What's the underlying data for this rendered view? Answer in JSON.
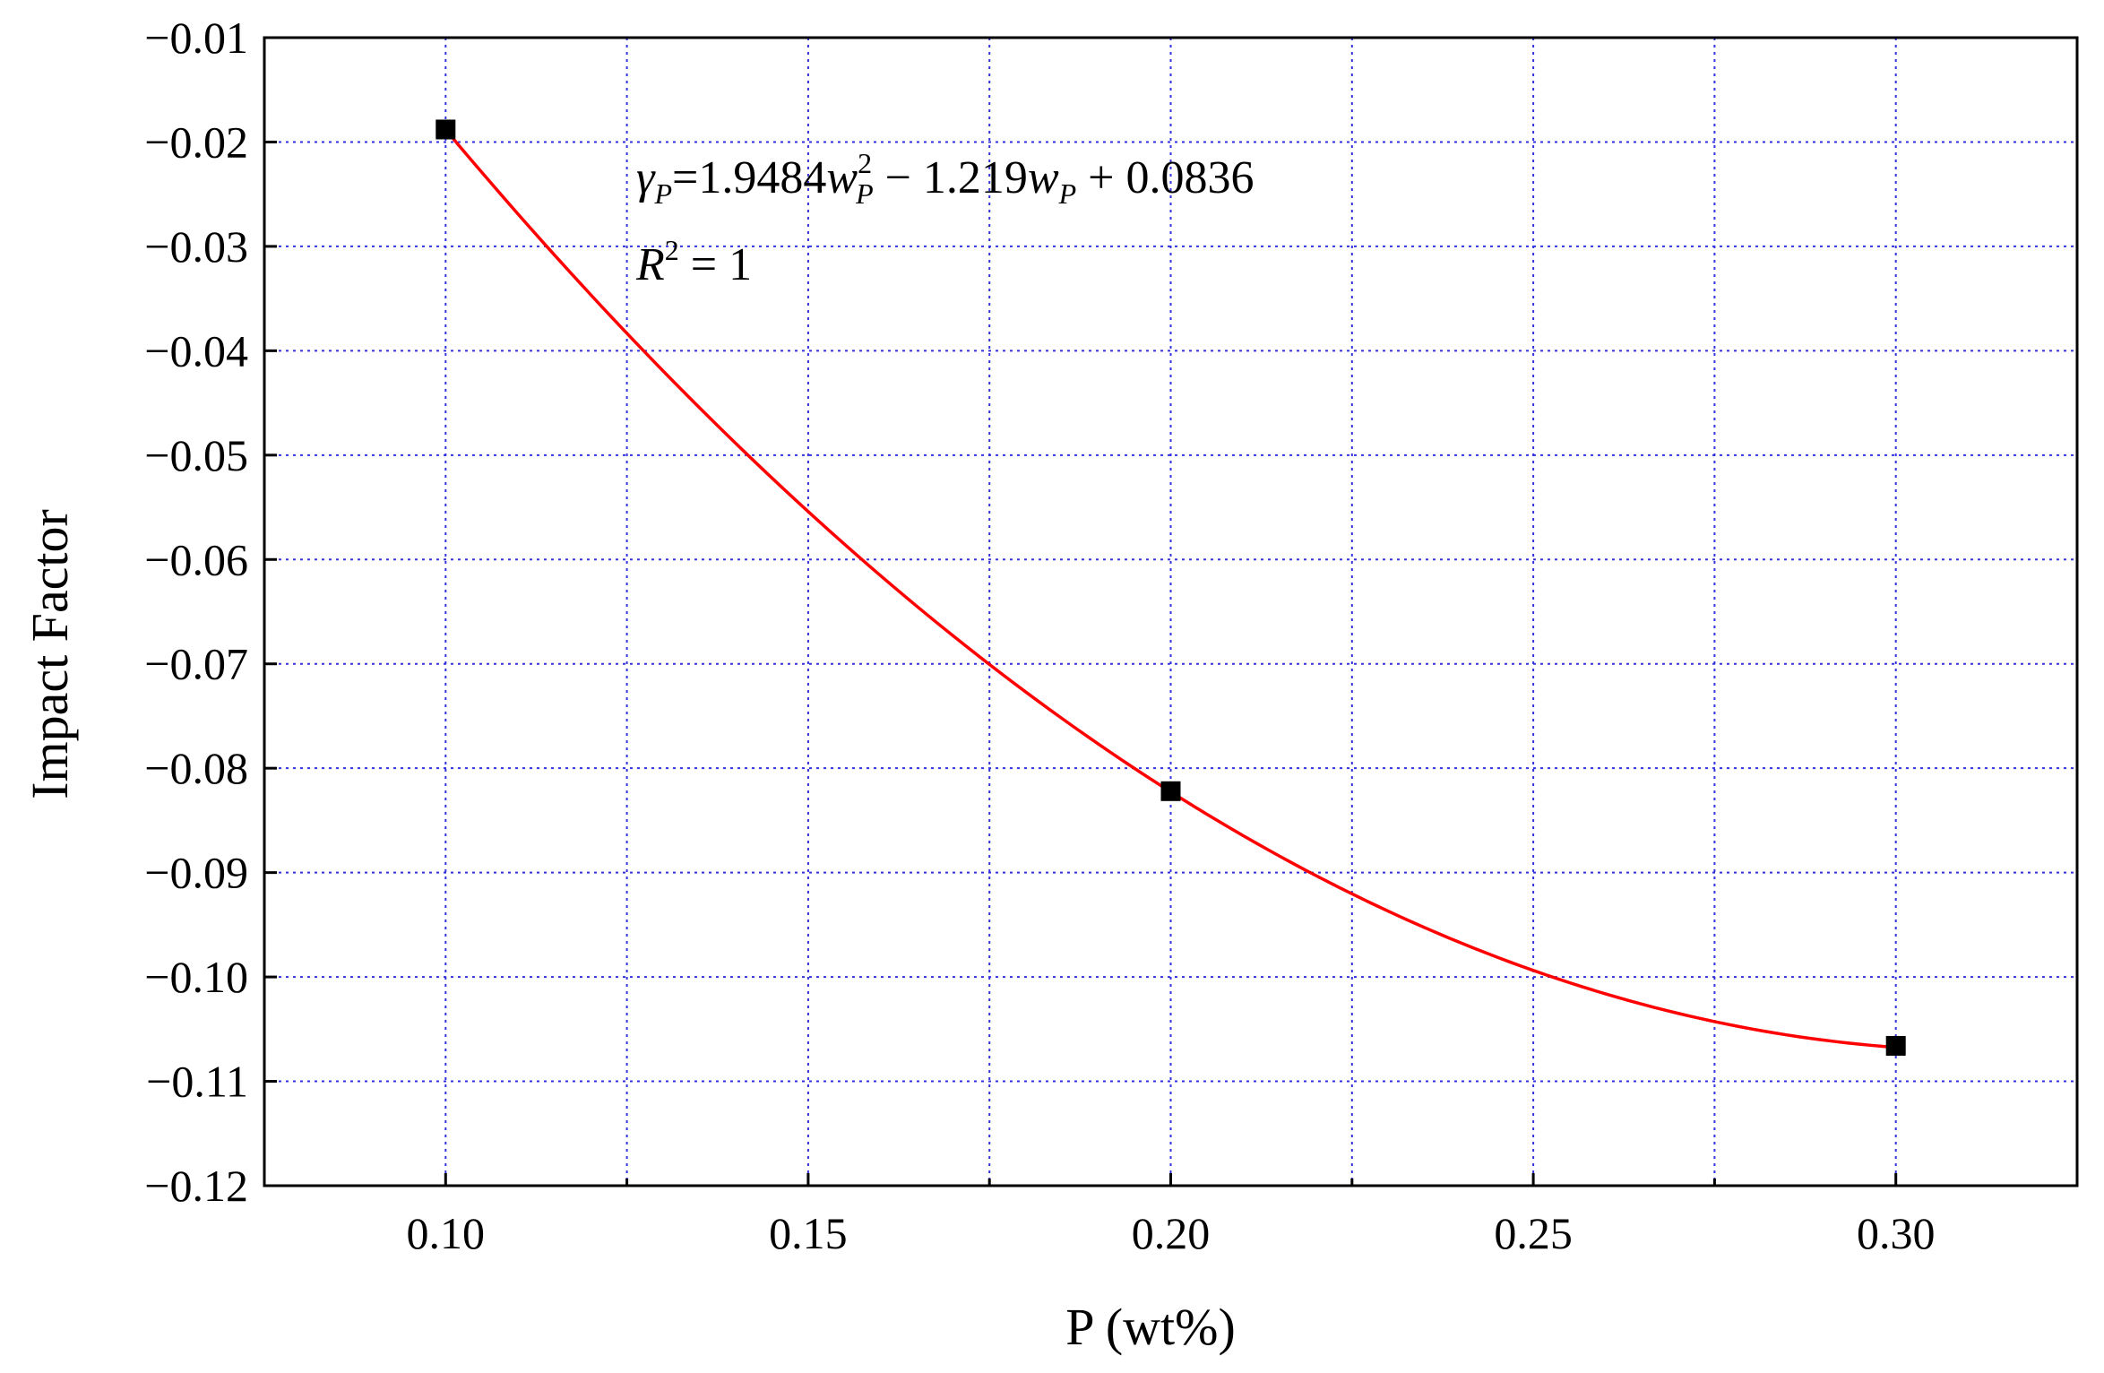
{
  "chart_data": {
    "type": "scatter",
    "xlabel": "P (wt%)",
    "ylabel": "Impact Factor",
    "xlim": [
      0.075,
      0.325
    ],
    "ylim": [
      -0.12,
      -0.01
    ],
    "x_ticks": [
      0.1,
      0.15,
      0.2,
      0.25,
      0.3
    ],
    "x_tick_labels": [
      "0.10",
      "0.15",
      "0.20",
      "0.25",
      "0.30"
    ],
    "y_ticks": [
      -0.01,
      -0.02,
      -0.03,
      -0.04,
      -0.05,
      -0.06,
      -0.07,
      -0.08,
      -0.09,
      -0.1,
      -0.11,
      -0.12
    ],
    "y_tick_labels": [
      "−0.01",
      "−0.02",
      "−0.03",
      "−0.04",
      "−0.05",
      "−0.06",
      "−0.07",
      "−0.08",
      "−0.09",
      "−0.10",
      "−0.11",
      "−0.12"
    ],
    "x_minor_ticks": [
      0.125,
      0.175,
      0.225,
      0.275
    ],
    "grid": true,
    "grid_color": "#3333dd",
    "points": {
      "x": [
        0.1,
        0.2,
        0.3
      ],
      "y": [
        -0.0188,
        -0.0822,
        -0.1066
      ]
    },
    "point_color": "#000000",
    "fit": {
      "type": "quadratic",
      "coefficients": [
        1.9484,
        -1.219,
        0.0836
      ],
      "x_range": [
        0.1,
        0.3
      ],
      "color": "#ff0000"
    },
    "annotations": {
      "equation": {
        "gamma": "γ",
        "sub_p": "P",
        "eq1": "=1.9484",
        "w": "w",
        "sup_2": "2",
        "minus": " − 1.219",
        "plus": " + 0.0836"
      },
      "r2": {
        "r": "R",
        "sup_2": "2",
        "value": " = 1"
      }
    }
  }
}
